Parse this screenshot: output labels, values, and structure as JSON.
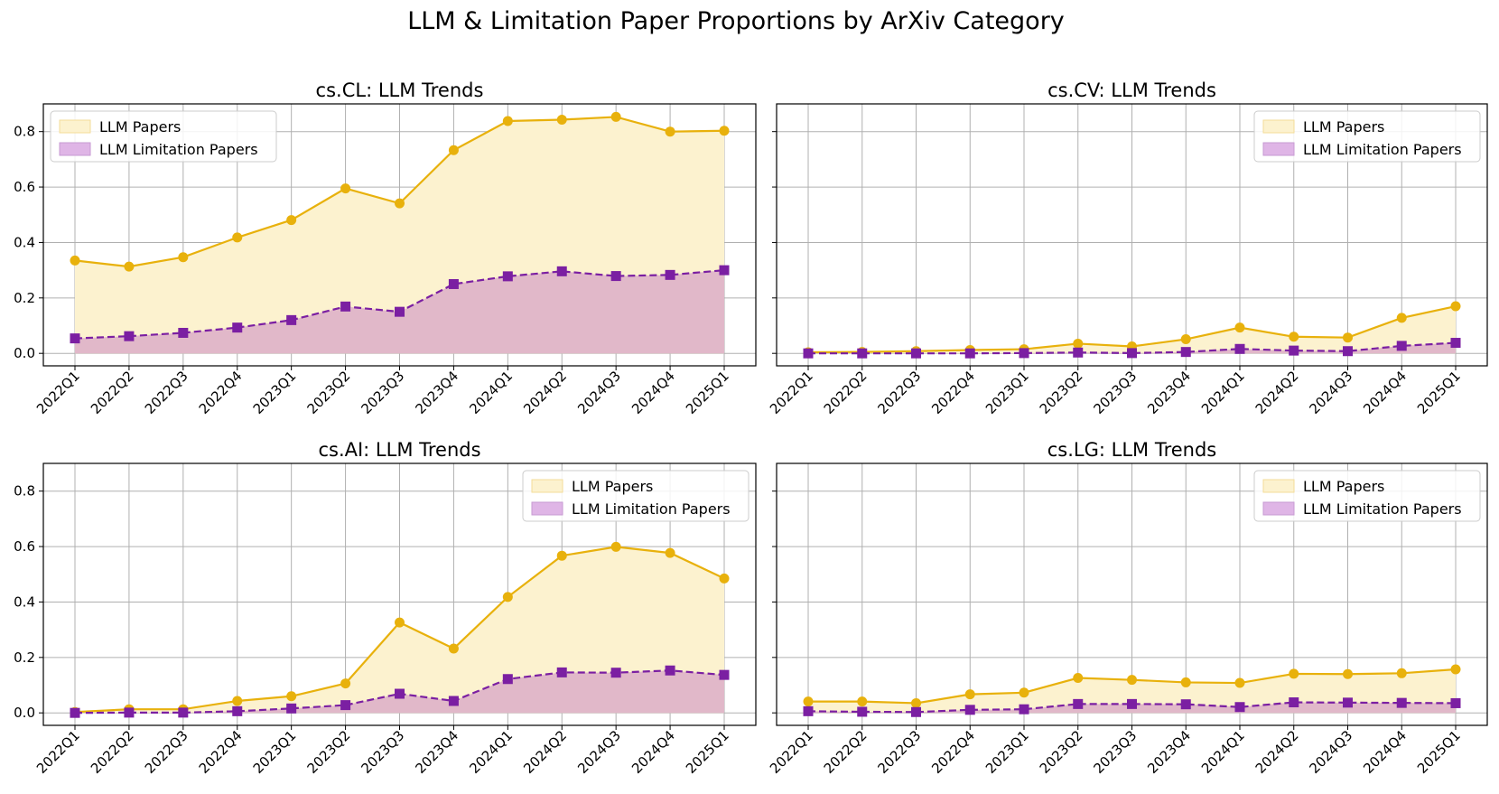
{
  "figure": {
    "title": "LLM & Limitation Paper Proportions by ArXiv Category"
  },
  "colors": {
    "llm_line": "#e8b10c",
    "llm_fill": "#fcf2cf",
    "limit_line": "#7b1fa2",
    "limit_fill": "#e1b8c9",
    "grid": "#b0b0b0"
  },
  "chart_data": [
    {
      "type": "area",
      "title": "cs.CL: LLM Trends",
      "x": [
        "2022Q1",
        "2022Q2",
        "2022Q3",
        "2022Q4",
        "2023Q1",
        "2023Q2",
        "2023Q3",
        "2023Q4",
        "2024Q1",
        "2024Q2",
        "2024Q3",
        "2024Q4",
        "2025Q1"
      ],
      "series": [
        {
          "name": "LLM Papers",
          "values": [
            0.335,
            0.313,
            0.347,
            0.418,
            0.481,
            0.595,
            0.541,
            0.733,
            0.838,
            0.843,
            0.853,
            0.8,
            0.803
          ]
        },
        {
          "name": "LLM Limitation Papers",
          "values": [
            0.054,
            0.062,
            0.074,
            0.093,
            0.12,
            0.169,
            0.15,
            0.25,
            0.278,
            0.296,
            0.279,
            0.283,
            0.3
          ]
        }
      ],
      "yticks": [
        "0.0",
        "0.2",
        "0.4",
        "0.6",
        "0.8"
      ],
      "ylim": [
        -0.045,
        0.9
      ],
      "grid": true,
      "legend": "upper-left"
    },
    {
      "type": "area",
      "title": "cs.CV: LLM Trends",
      "x": [
        "2022Q1",
        "2022Q2",
        "2022Q3",
        "2022Q4",
        "2023Q1",
        "2023Q2",
        "2023Q3",
        "2023Q4",
        "2024Q1",
        "2024Q2",
        "2024Q3",
        "2024Q4",
        "2025Q1"
      ],
      "series": [
        {
          "name": "LLM Papers",
          "values": [
            0.004,
            0.005,
            0.008,
            0.012,
            0.015,
            0.035,
            0.025,
            0.051,
            0.093,
            0.06,
            0.057,
            0.128,
            0.17
          ]
        },
        {
          "name": "LLM Limitation Papers",
          "values": [
            0.0,
            0.0,
            0.0,
            0.0,
            0.001,
            0.003,
            0.001,
            0.005,
            0.016,
            0.01,
            0.008,
            0.027,
            0.038
          ]
        }
      ],
      "yticks": [
        "0.0",
        "0.2",
        "0.4",
        "0.6",
        "0.8"
      ],
      "ylim": [
        -0.045,
        0.9
      ],
      "grid": true,
      "legend": "upper-right"
    },
    {
      "type": "area",
      "title": "cs.AI: LLM Trends",
      "x": [
        "2022Q1",
        "2022Q2",
        "2022Q3",
        "2022Q4",
        "2023Q1",
        "2023Q2",
        "2023Q3",
        "2023Q4",
        "2024Q1",
        "2024Q2",
        "2024Q3",
        "2024Q4",
        "2025Q1"
      ],
      "series": [
        {
          "name": "LLM Papers",
          "values": [
            0.003,
            0.013,
            0.013,
            0.043,
            0.06,
            0.106,
            0.326,
            0.232,
            0.418,
            0.567,
            0.599,
            0.577,
            0.485
          ]
        },
        {
          "name": "LLM Limitation Papers",
          "values": [
            0.0,
            0.001,
            0.001,
            0.006,
            0.016,
            0.028,
            0.069,
            0.043,
            0.122,
            0.146,
            0.145,
            0.153,
            0.137
          ]
        }
      ],
      "yticks": [
        "0.0",
        "0.2",
        "0.4",
        "0.6",
        "0.8"
      ],
      "ylim": [
        -0.045,
        0.9
      ],
      "grid": true,
      "legend": "upper-right"
    },
    {
      "type": "area",
      "title": "cs.LG: LLM Trends",
      "x": [
        "2022Q1",
        "2022Q2",
        "2022Q3",
        "2022Q4",
        "2023Q1",
        "2023Q2",
        "2023Q3",
        "2023Q4",
        "2024Q1",
        "2024Q2",
        "2024Q3",
        "2024Q4",
        "2025Q1"
      ],
      "series": [
        {
          "name": "LLM Papers",
          "values": [
            0.041,
            0.041,
            0.035,
            0.067,
            0.073,
            0.126,
            0.119,
            0.11,
            0.108,
            0.141,
            0.14,
            0.143,
            0.157
          ]
        },
        {
          "name": "LLM Limitation Papers",
          "values": [
            0.006,
            0.004,
            0.003,
            0.011,
            0.013,
            0.032,
            0.032,
            0.031,
            0.021,
            0.038,
            0.037,
            0.036,
            0.035
          ]
        }
      ],
      "yticks": [
        "0.0",
        "0.2",
        "0.4",
        "0.6",
        "0.8"
      ],
      "ylim": [
        -0.045,
        0.9
      ],
      "grid": true,
      "legend": "upper-right"
    }
  ]
}
